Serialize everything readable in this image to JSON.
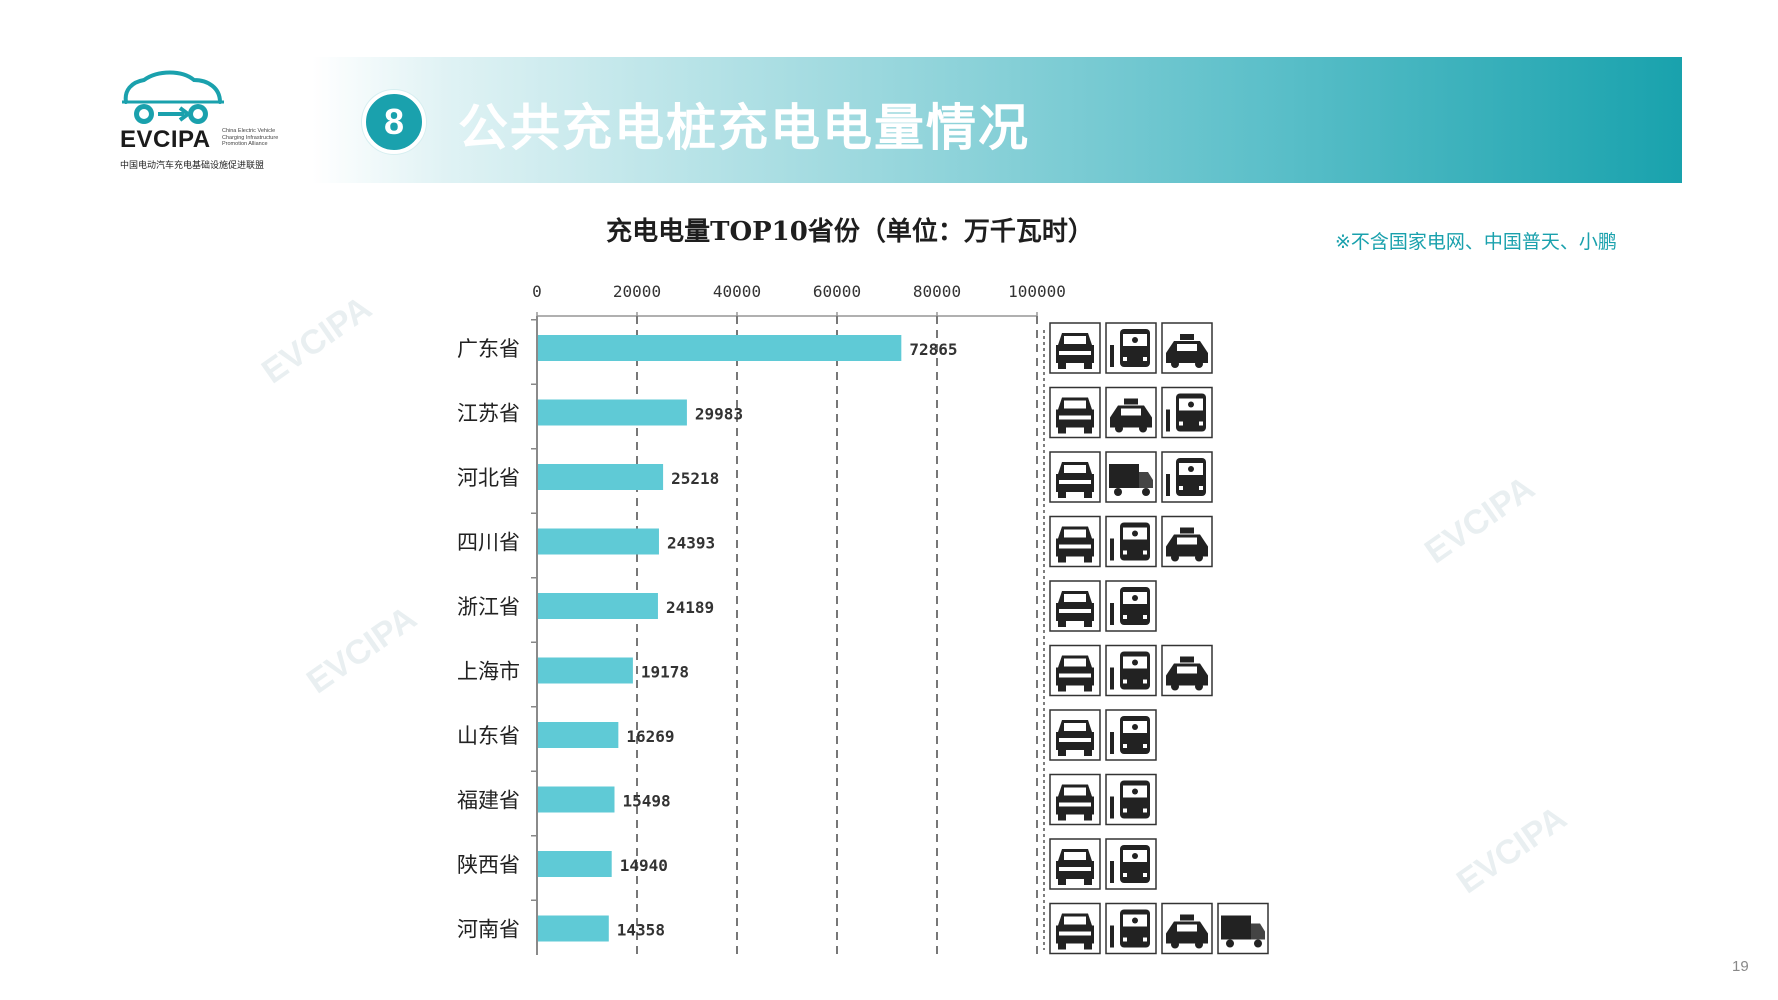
{
  "logo": {
    "name": "EVCIPA",
    "en_lines": [
      "China Electric Vehicle",
      "Charging Infrastructure",
      "Promotion Alliance"
    ],
    "cn": "中国电动汽车充电基础设施促进联盟"
  },
  "header": {
    "number": "8",
    "title": "公共充电桩充电电量情况"
  },
  "note": "※不含国家电网、中国普天、小鹏",
  "page_number": "19",
  "colors": {
    "accent": "#1aa1ad",
    "bar": "#5fcad6"
  },
  "chart_data": {
    "type": "bar",
    "orientation": "horizontal",
    "title": "充电电量TOP10省份（单位：万千瓦时）",
    "xlim": [
      0,
      100000
    ],
    "xticks": [
      "0",
      "20000",
      "40000",
      "60000",
      "80000",
      "100000"
    ],
    "grid": "vertical dashed",
    "categories": [
      "广东省",
      "江苏省",
      "河北省",
      "四川省",
      "浙江省",
      "上海市",
      "山东省",
      "福建省",
      "陕西省",
      "河南省"
    ],
    "values": [
      72865,
      29983,
      25218,
      24393,
      24189,
      19178,
      16269,
      15498,
      14940,
      14358
    ],
    "vehicle_icons": [
      [
        "car-icon",
        "bus-icon",
        "taxi-icon"
      ],
      [
        "car-icon",
        "taxi-icon",
        "bus-icon"
      ],
      [
        "car-icon",
        "truck-icon",
        "bus-icon"
      ],
      [
        "car-icon",
        "bus-icon",
        "taxi-icon"
      ],
      [
        "car-icon",
        "bus-icon"
      ],
      [
        "car-icon",
        "bus-icon",
        "taxi-icon"
      ],
      [
        "car-icon",
        "bus-icon"
      ],
      [
        "car-icon",
        "bus-icon"
      ],
      [
        "car-icon",
        "bus-icon"
      ],
      [
        "car-icon",
        "bus-icon",
        "taxi-icon",
        "truck-icon"
      ]
    ]
  }
}
